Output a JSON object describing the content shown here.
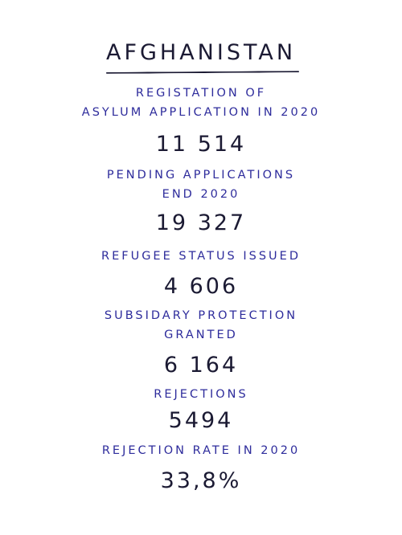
{
  "title": "AFGHANISTAN",
  "colors": {
    "heading_ink": "#1b1a33",
    "label_ink": "#2e2c9c",
    "background": "#ffffff"
  },
  "stats": [
    {
      "label_lines": [
        "REGISTATION OF",
        "ASYLUM APPLICATION IN 2020"
      ],
      "value": "11 514"
    },
    {
      "label_lines": [
        "PENDING APPLICATIONS",
        "END 2020"
      ],
      "value": "19 327"
    },
    {
      "label_lines": [
        "REFUGEE STATUS ISSUED"
      ],
      "value": "4 606"
    },
    {
      "label_lines": [
        "SUBSIDARY PROTECTION",
        "GRANTED"
      ],
      "value": "6 164"
    },
    {
      "label_lines": [
        "REJECTIONS"
      ],
      "value": "5494"
    },
    {
      "label_lines": [
        "REJECTION RATE IN 2020"
      ],
      "value": "33,8%"
    }
  ]
}
